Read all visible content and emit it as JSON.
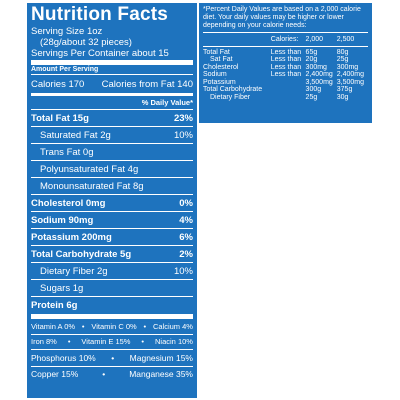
{
  "title": "Nutrition Facts",
  "serving_size": "Serving Size 1oz",
  "serving_size_detail": "(28g/about 32 pieces)",
  "servings_per_container": "Servings Per Container about 15",
  "amount_per_serving": "Amount Per Serving",
  "calories": "Calories 170",
  "calories_from_fat": "Calories from Fat 140",
  "daily_value_header": "% Daily Value*",
  "nutrients": [
    {
      "label": "Total Fat 15g",
      "dv": "23%"
    },
    {
      "label": "Saturated Fat 2g",
      "dv": "10%"
    },
    {
      "label": "Trans Fat 0g",
      "dv": ""
    },
    {
      "label": "Polyunsaturated Fat 4g",
      "dv": ""
    },
    {
      "label": "Monounsaturated Fat 8g",
      "dv": ""
    },
    {
      "label": "Cholesterol 0mg",
      "dv": "0%"
    },
    {
      "label": "Sodium 90mg",
      "dv": "4%"
    },
    {
      "label": "Potassium 200mg",
      "dv": "6%"
    },
    {
      "label": "Total Carbohydrate 5g",
      "dv": "2%"
    },
    {
      "label": "Dietary Fiber 2g",
      "dv": "10%"
    },
    {
      "label": "Sugars 1g",
      "dv": ""
    },
    {
      "label": "Protein 6g",
      "dv": ""
    }
  ],
  "vitamins": [
    [
      "Vitamin A 0%",
      "Vitamin C 0%",
      "Calcium 4%"
    ],
    [
      "Iron 8%",
      "Vitamin E 15%",
      "Niacin 10%"
    ]
  ],
  "minerals": [
    [
      "Phosphorus 10%",
      "Magnesium 15%"
    ],
    [
      "Copper 15%",
      "Manganese 35%"
    ]
  ],
  "footnote": "*Percent Daily Values are based on a 2,000 calorie diet. Your daily values may be higher or lower depending on your calorie needs:",
  "footnote_table": {
    "header": [
      "Calories:",
      "2,000",
      "2,500"
    ],
    "rows": [
      [
        "Total Fat",
        "Less than",
        "65g",
        "80g"
      ],
      [
        "Sat Fat",
        "Less than",
        "20g",
        "25g"
      ],
      [
        "Cholesterol",
        "Less than",
        "300mg",
        "300mg"
      ],
      [
        "Sodium",
        "Less than",
        "2,400mg",
        "2,400mg"
      ],
      [
        "Potassium",
        "",
        "3,500mg",
        "3,500mg"
      ],
      [
        "Total Carbohydrate",
        "",
        "300g",
        "375g"
      ],
      [
        "Dietary Fiber",
        "",
        "25g",
        "30g"
      ]
    ]
  }
}
